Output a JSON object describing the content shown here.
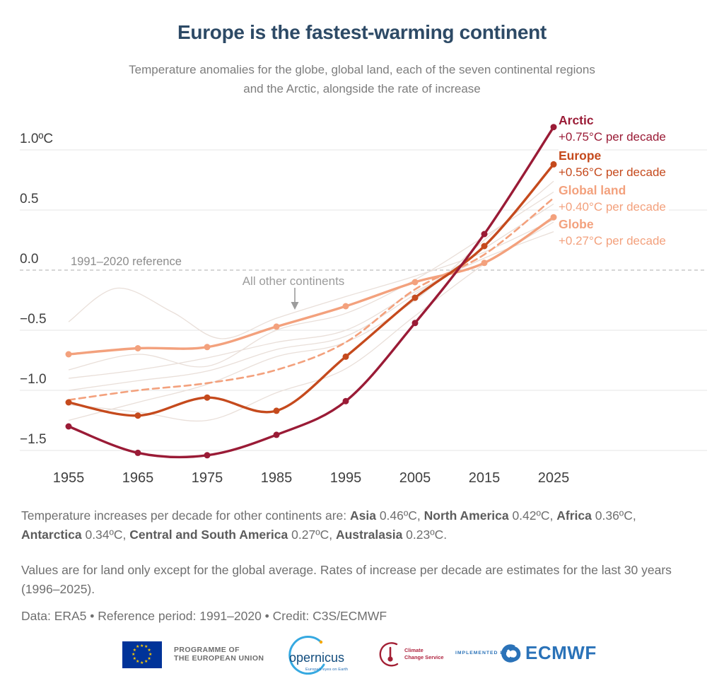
{
  "title": "Europe is the fastest-warming continent",
  "subtitle": {
    "line1": "Temperature anomalies for the globe, global land, each of the seven continental regions",
    "line2": "and the Arctic, alongside the rate of increase"
  },
  "chart_data": {
    "type": "line",
    "x": [
      1955,
      1965,
      1975,
      1985,
      1995,
      2005,
      2015,
      2025
    ],
    "unit": "°C",
    "ylim": [
      -1.75,
      1.3
    ],
    "grid": "horizontal",
    "legend_position": "right-of-line-ends",
    "y_ticks": [
      {
        "label": "1.0ºC",
        "value": 1.0
      },
      {
        "label": "0.5",
        "value": 0.5
      },
      {
        "label": "0.0",
        "value": 0.0
      },
      {
        "label": "−0.5",
        "value": -0.5
      },
      {
        "label": "−1.0",
        "value": -1.0
      },
      {
        "label": "−1.5",
        "value": -1.5
      }
    ],
    "reference_line": {
      "value": 0.0,
      "label": "1991–2020 reference"
    },
    "series": [
      {
        "name": "Arctic",
        "rate_label": "+0.75°C per decade",
        "color": "#9a1b36",
        "line": "solid",
        "markers": true,
        "values": [
          -1.3,
          -1.52,
          -1.54,
          -1.37,
          -1.09,
          -0.44,
          0.3,
          1.19
        ]
      },
      {
        "name": "Europe",
        "rate_label": "+0.56°C per decade",
        "color": "#c54a1d",
        "line": "solid",
        "markers": true,
        "values": [
          -1.1,
          -1.21,
          -1.06,
          -1.17,
          -0.72,
          -0.23,
          0.2,
          0.88
        ]
      },
      {
        "name": "Global land",
        "rate_label": "+0.40°C per decade",
        "color": "#f3a17d",
        "line": "dashed",
        "markers": false,
        "values": [
          -1.08,
          -1.0,
          -0.94,
          -0.83,
          -0.6,
          -0.16,
          0.13,
          0.6
        ]
      },
      {
        "name": "Globe",
        "rate_label": "+0.27°C per decade",
        "color": "#f3a17d",
        "line": "solid",
        "markers": true,
        "values": [
          -0.7,
          -0.65,
          -0.64,
          -0.47,
          -0.3,
          -0.1,
          0.06,
          0.44
        ]
      }
    ],
    "background_series": {
      "label": "All other continents",
      "color": "#e9dfd9",
      "lines": [
        {
          "name": "Asia",
          "x": [
            1955,
            1965,
            1975,
            1985,
            1995,
            2005,
            2015,
            2025
          ],
          "values": [
            -1.25,
            -1.1,
            -0.95,
            -0.72,
            -0.6,
            -0.25,
            0.25,
            0.74
          ]
        },
        {
          "name": "North America",
          "x": [
            1955,
            1965,
            1975,
            1985,
            1995,
            2005,
            2015,
            2025
          ],
          "values": [
            -0.83,
            -0.7,
            -0.8,
            -0.5,
            -0.36,
            -0.08,
            0.28,
            0.65
          ]
        },
        {
          "name": "Africa",
          "x": [
            1955,
            1965,
            1975,
            1985,
            1995,
            2005,
            2015,
            2025
          ],
          "values": [
            -1.0,
            -0.92,
            -0.84,
            -0.66,
            -0.55,
            -0.2,
            0.18,
            0.55
          ]
        },
        {
          "name": "Antarctica",
          "x": [
            1955,
            1962,
            1970,
            1977,
            1985,
            1995,
            2005,
            2015,
            2025
          ],
          "values": [
            -0.43,
            -0.15,
            -0.35,
            -0.57,
            -0.4,
            -0.22,
            -0.05,
            0.15,
            0.42
          ]
        },
        {
          "name": "Central and South America",
          "x": [
            1955,
            1965,
            1975,
            1985,
            1995,
            2005,
            2015,
            2025
          ],
          "values": [
            -1.12,
            -1.18,
            -1.25,
            -1.02,
            -0.82,
            -0.38,
            0.05,
            0.4
          ]
        },
        {
          "name": "Australasia",
          "x": [
            1955,
            1965,
            1975,
            1985,
            1995,
            2005,
            2015,
            2025
          ],
          "values": [
            -0.9,
            -0.83,
            -0.73,
            -0.6,
            -0.5,
            -0.18,
            0.1,
            0.32
          ]
        }
      ]
    }
  },
  "annotations": {
    "reference_label": "1991–2020 reference",
    "other_continents": "All other continents"
  },
  "footnotes": {
    "rates_other": {
      "segments": [
        {
          "text": "Temperature increases per decade for other continents are: ",
          "bold": false
        },
        {
          "text": "Asia",
          "bold": true
        },
        {
          "text": " 0.46ºC, ",
          "bold": false
        },
        {
          "text": "North America",
          "bold": true
        },
        {
          "text": " 0.42ºC, ",
          "bold": false
        },
        {
          "text": "Africa",
          "bold": true
        },
        {
          "text": " 0.36ºC, ",
          "bold": false
        },
        {
          "text": "Antarctica",
          "bold": true
        },
        {
          "text": " 0.34ºC, ",
          "bold": false
        },
        {
          "text": "Central and South America",
          "bold": true
        },
        {
          "text": " 0.27ºC, ",
          "bold": false
        },
        {
          "text": "Australasia",
          "bold": true
        },
        {
          "text": " 0.23ºC.",
          "bold": false
        }
      ]
    },
    "method": "Values are for land only except for the global average. Rates of increase per decade are estimates for the last 30 years (1996–2025).",
    "credit": "Data: ERA5 • Reference period: 1991–2020 • Credit: C3S/ECMWF"
  },
  "footer": {
    "eu": {
      "line1": "PROGRAMME OF",
      "line2": "THE EUROPEAN UNION",
      "flag_blue": "#003399",
      "star_yellow": "#ffcc00"
    },
    "copernicus": {
      "name": "opernicus",
      "tagline": "Europe's eyes on Earth",
      "arc_blue": "#36a9e1",
      "text_blue": "#114c7d"
    },
    "c3s": {
      "line1": "Climate",
      "line2": "Change Service",
      "red": "#a32035",
      "text_red": "#b02540"
    },
    "ecmwf": {
      "prefix": "IMPLEMENTED BY",
      "name": "ECMWF",
      "blue": "#2a72b8"
    }
  },
  "colors": {
    "title": "#2d4a66",
    "subtitle": "#7d7d7d",
    "axis_text": "#3f3f3f",
    "grid": "#e5e5e5",
    "zero_line": "#bdbdbd",
    "annotation": "#9c9c9c",
    "note_text": "#6f6f6f"
  }
}
